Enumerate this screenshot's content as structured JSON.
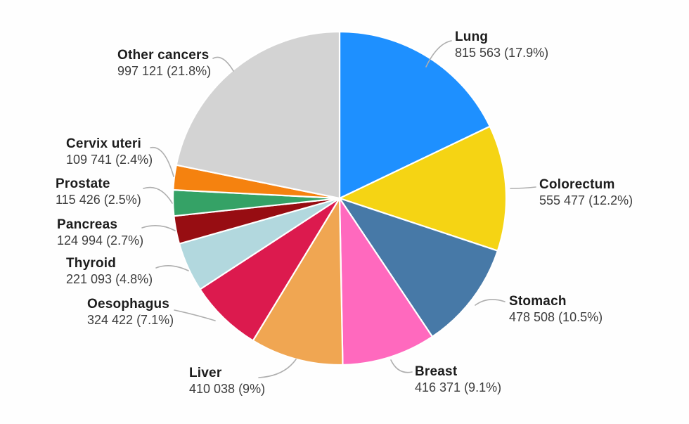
{
  "chart_data": {
    "type": "pie",
    "title": "",
    "legend_position": "none",
    "labels_outside": true,
    "start_angle_deg": 0,
    "direction": "clockwise",
    "background": "#ffffff",
    "slice_separator_color": "#ffffff",
    "leader_line_color": "#aeaeae",
    "slices": [
      {
        "label": "Lung",
        "value": 815563,
        "percent": 17.9,
        "value_text": "815 563 (17.9%)",
        "color": "#1E90FF"
      },
      {
        "label": "Colorectum",
        "value": 555477,
        "percent": 12.2,
        "value_text": "555 477 (12.2%)",
        "color": "#F5D414"
      },
      {
        "label": "Stomach",
        "value": 478508,
        "percent": 10.5,
        "value_text": "478 508 (10.5%)",
        "color": "#4779A7"
      },
      {
        "label": "Breast",
        "value": 416371,
        "percent": 9.1,
        "value_text": "416 371 (9.1%)",
        "color": "#FF69BE"
      },
      {
        "label": "Liver",
        "value": 410038,
        "percent": 9.0,
        "value_text": "410 038 (9%)",
        "color": "#F0A652"
      },
      {
        "label": "Oesophagus",
        "value": 324422,
        "percent": 7.1,
        "value_text": "324 422 (7.1%)",
        "color": "#DC1A4E"
      },
      {
        "label": "Thyroid",
        "value": 221093,
        "percent": 4.8,
        "value_text": "221 093 (4.8%)",
        "color": "#B2D8DE"
      },
      {
        "label": "Pancreas",
        "value": 124994,
        "percent": 2.7,
        "value_text": "124 994 (2.7%)",
        "color": "#970D12"
      },
      {
        "label": "Prostate",
        "value": 115426,
        "percent": 2.5,
        "value_text": "115 426 (2.5%)",
        "color": "#35A266"
      },
      {
        "label": "Cervix uteri",
        "value": 109741,
        "percent": 2.4,
        "value_text": "109 741 (2.4%)",
        "color": "#F5820F"
      },
      {
        "label": "Other cancers",
        "value": 997121,
        "percent": 21.8,
        "value_text": "997 121 (21.8%)",
        "color": "#D3D3D3"
      }
    ]
  }
}
